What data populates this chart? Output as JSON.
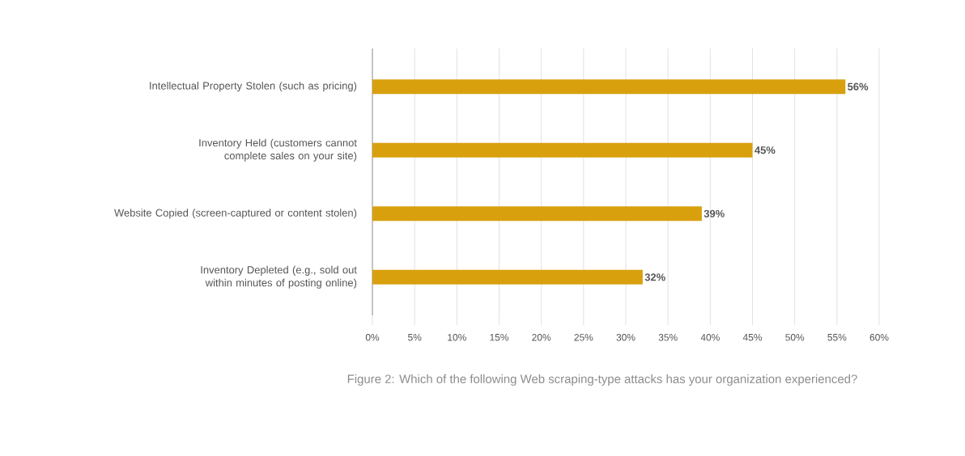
{
  "chart_data": {
    "type": "bar",
    "orientation": "horizontal",
    "categories": [
      "Intellectual Property Stolen (such as pricing)",
      "Inventory Held (customers cannot complete sales on your site)",
      "Website Copied (screen-captured or content stolen)",
      "Inventory Depleted (e.g., sold out within minutes of posting online)"
    ],
    "values": [
      56,
      45,
      39,
      32
    ],
    "value_labels": [
      "56%",
      "45%",
      "39%",
      "32%"
    ],
    "color": "#d9a00e",
    "xlim": [
      0,
      60
    ],
    "xticks": [
      {
        "value": 0,
        "label": "0%"
      },
      {
        "value": 5,
        "label": "5%"
      },
      {
        "value": 10,
        "label": "10%"
      },
      {
        "value": 15,
        "label": "15%"
      },
      {
        "value": 20,
        "label": "20%"
      },
      {
        "value": 25,
        "label": "25%"
      },
      {
        "value": 30,
        "label": "30%"
      },
      {
        "value": 35,
        "label": "35%"
      },
      {
        "value": 40,
        "label": "40%"
      },
      {
        "value": 45,
        "label": "45%"
      },
      {
        "value": 50,
        "label": "50%"
      },
      {
        "value": 55,
        "label": "55%"
      },
      {
        "value": 60,
        "label": "60%"
      }
    ],
    "grid": "x",
    "annotations": [
      "Figure 2: Which of the following Web scraping-type attacks has your organization experienced?"
    ]
  }
}
